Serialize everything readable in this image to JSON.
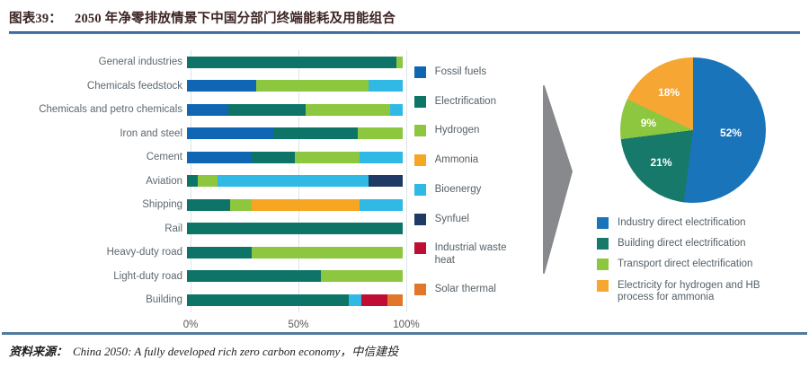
{
  "header": {
    "figure_label": "图表39：",
    "title": "2050 年净零排放情景下中国分部门终端能耗及用能组合"
  },
  "source": {
    "prefix": "资料来源：",
    "citation": "China 2050: A fully developed rich zero carbon economy，中信建投"
  },
  "chart_data": [
    {
      "type": "bar",
      "orientation": "horizontal",
      "stacked": true,
      "unit": "percent",
      "xlim": [
        0,
        100
      ],
      "x_ticks": [
        "0%",
        "50%",
        "100%"
      ],
      "grid": "vertical-light",
      "legend_position": "right",
      "categories": [
        "General industries",
        "Chemicals feedstock",
        "Chemicals and petro chemicals",
        "Iron and steel",
        "Cement",
        "Aviation",
        "Shipping",
        "Rail",
        "Heavy-duty road",
        "Light-duty road",
        "Building"
      ],
      "series": [
        {
          "name": "Fossil fuels",
          "color": "#1066b2",
          "values": [
            0,
            32,
            19,
            40,
            30,
            0,
            0,
            0,
            0,
            0,
            0
          ]
        },
        {
          "name": "Electrification",
          "color": "#0e7468",
          "values": [
            97,
            0,
            36,
            39,
            20,
            5,
            20,
            100,
            30,
            62,
            75
          ]
        },
        {
          "name": "Hydrogen",
          "color": "#8dc63f",
          "values": [
            3,
            52,
            39,
            21,
            30,
            9,
            10,
            0,
            70,
            38,
            0
          ]
        },
        {
          "name": "Ammonia",
          "color": "#f6a623",
          "values": [
            0,
            0,
            0,
            0,
            0,
            0,
            50,
            0,
            0,
            0,
            0
          ]
        },
        {
          "name": "Bioenergy",
          "color": "#2fb9e4",
          "values": [
            0,
            16,
            6,
            0,
            20,
            70,
            20,
            0,
            0,
            0,
            6
          ]
        },
        {
          "name": "Synfuel",
          "color": "#1f3a64",
          "values": [
            0,
            0,
            0,
            0,
            0,
            16,
            0,
            0,
            0,
            0,
            0
          ]
        },
        {
          "name": "Industrial waste heat",
          "color": "#c00d33",
          "values": [
            0,
            0,
            0,
            0,
            0,
            0,
            0,
            0,
            0,
            0,
            12
          ]
        },
        {
          "name": "Solar thermal",
          "color": "#e2762b",
          "values": [
            0,
            0,
            0,
            0,
            0,
            0,
            0,
            0,
            0,
            0,
            7
          ]
        }
      ]
    },
    {
      "type": "pie",
      "start_angle_deg": 0,
      "direction": "clockwise",
      "legend_position": "bottom",
      "slices": [
        {
          "label": "Industry direct electrification",
          "value": 52,
          "color": "#1a74ba"
        },
        {
          "label": "Building direct electrification",
          "value": 21,
          "color": "#17796a"
        },
        {
          "label": "Transport direct electrification",
          "value": 9,
          "color": "#8dc63f"
        },
        {
          "label": "Electricity for hydrogen and HB process for ammonia",
          "value": 18,
          "color": "#f6a633"
        }
      ]
    }
  ]
}
